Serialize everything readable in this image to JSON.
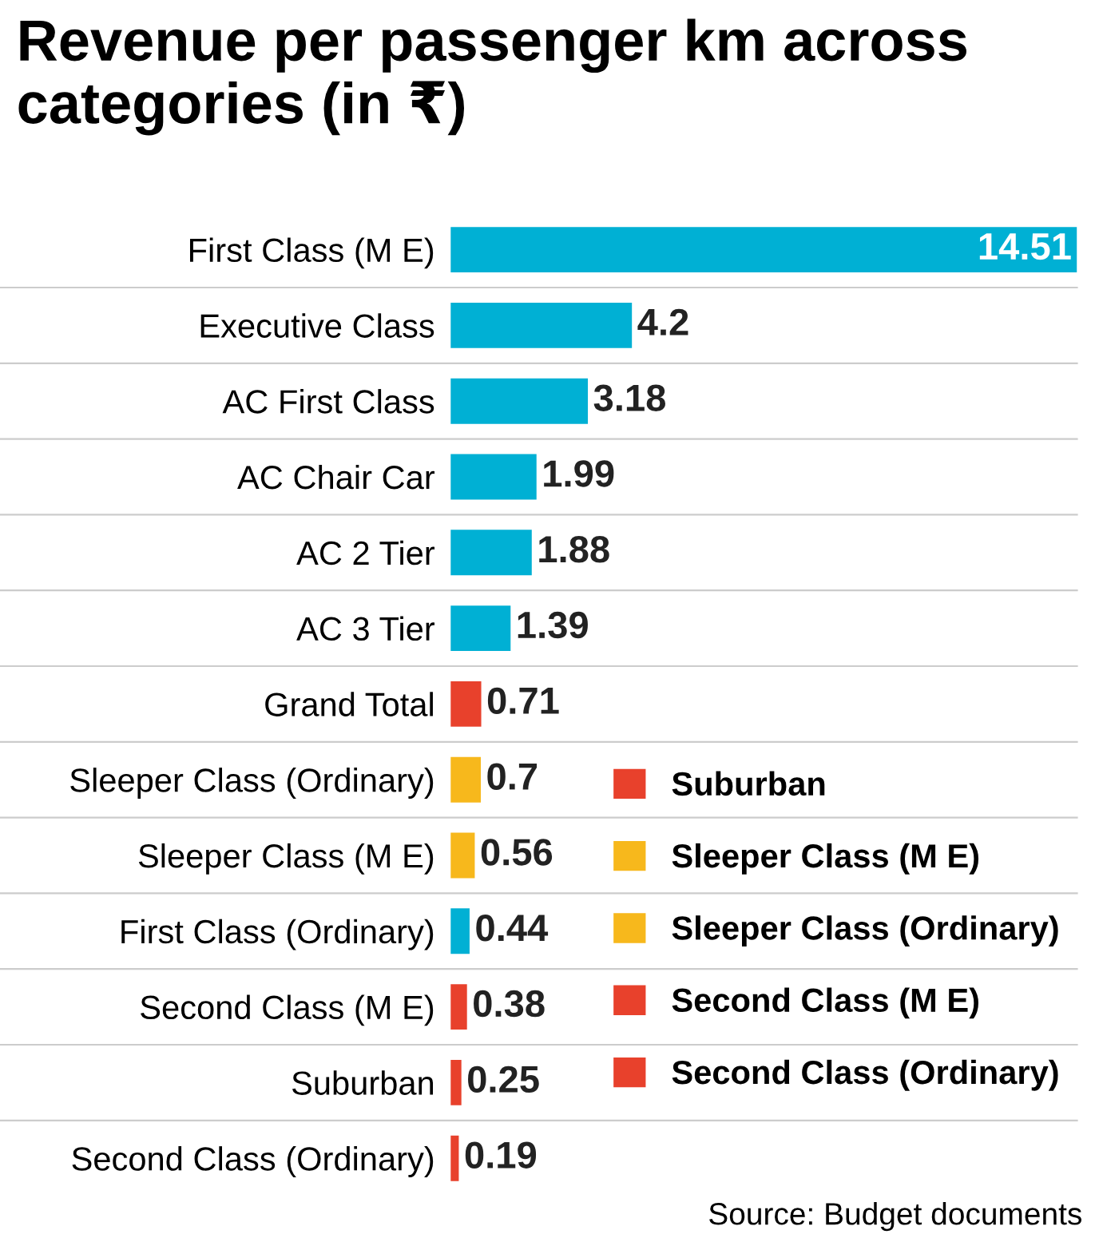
{
  "chart_data": {
    "type": "bar",
    "orientation": "horizontal",
    "title": "Revenue per passenger km across categories (in ₹)",
    "categories": [
      "First Class (M E)",
      "Executive Class",
      "AC First Class",
      "AC Chair Car",
      "AC 2 Tier",
      "AC 3 Tier",
      "Grand Total",
      "Sleeper Class (Ordinary)",
      "Sleeper Class (M E)",
      "First Class (Ordinary)",
      "Second Class (M E)",
      "Suburban",
      "Second Class (Ordinary)"
    ],
    "series": [
      {
        "color": "#00b0d4",
        "values": [
          14.51,
          4.2,
          3.18,
          1.99,
          1.88,
          1.39,
          null,
          null,
          null,
          0.44,
          null,
          null,
          null
        ]
      },
      {
        "color": "#e8412c",
        "values": [
          null,
          null,
          null,
          null,
          null,
          null,
          0.71,
          null,
          null,
          null,
          null,
          null,
          null
        ]
      },
      {
        "name": "Suburban",
        "color": "#e8412c",
        "values": [
          null,
          null,
          null,
          null,
          null,
          null,
          null,
          null,
          null,
          null,
          null,
          0.25,
          null
        ]
      },
      {
        "name": "Sleeper Class (M E)",
        "color": "#f7b81c",
        "values": [
          null,
          null,
          null,
          null,
          null,
          null,
          null,
          null,
          0.56,
          null,
          null,
          null,
          null
        ]
      },
      {
        "name": "Sleeper Class (Ordinary)",
        "color": "#f7b81c",
        "values": [
          null,
          null,
          null,
          null,
          null,
          null,
          null,
          0.7,
          null,
          null,
          null,
          null,
          null
        ]
      },
      {
        "name": "Second Class (M E)",
        "color": "#e8412c",
        "values": [
          null,
          null,
          null,
          null,
          null,
          null,
          null,
          null,
          null,
          null,
          0.38,
          null,
          null
        ]
      },
      {
        "name": "Second Class (Ordinary)",
        "color": "#e8412c",
        "values": [
          null,
          null,
          null,
          null,
          null,
          null,
          null,
          null,
          null,
          null,
          null,
          null,
          0.19
        ]
      }
    ],
    "data_labels": true,
    "legend": "right",
    "grid": false,
    "tick_labels": "y",
    "annotations": [
      "Source: Budget documents"
    ]
  }
}
